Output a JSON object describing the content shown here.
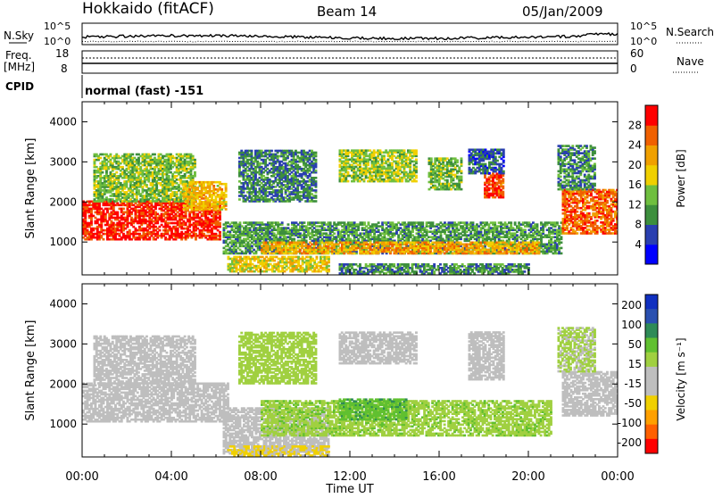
{
  "header": {
    "station": "Hokkaido (fitACF)",
    "beam": "Beam 14",
    "date": "05/Jan/2009"
  },
  "noise_panel": {
    "left_label": "N.Sky",
    "right_label": "N.Search",
    "tick_top": "10^5",
    "tick_bottom": "10^0"
  },
  "freq_panel": {
    "left_label_1": "Freq.",
    "left_label_2": "[MHz]",
    "left_ticks": [
      "18",
      "8"
    ],
    "right_label": "Nave",
    "right_ticks": [
      "60",
      "0"
    ]
  },
  "cpid_panel": {
    "label": "CPID",
    "mode_text": "normal (fast) -151"
  },
  "colors": {
    "power_scale": [
      "#0000ff",
      "#2a3fb0",
      "#3d8f3d",
      "#6fbf3f",
      "#f0d000",
      "#f0a000",
      "#f06000",
      "#ff0000"
    ],
    "velocity_scale": [
      "#ff0000",
      "#ff6000",
      "#ffa000",
      "#f0d000",
      "#bebebe",
      "#bebebe",
      "#a0d040",
      "#60c030",
      "#2e8b57",
      "#2a50b0",
      "#1030c0"
    ]
  },
  "chart_data": [
    {
      "type": "heatmap",
      "title": "Power",
      "xlabel": "",
      "ylabel": "Slant Range [km]",
      "x_ticks": [
        "00:00",
        "04:00",
        "08:00",
        "12:00",
        "16:00",
        "20:00",
        "00:00"
      ],
      "y_ticks": [
        "1000",
        "2000",
        "3000",
        "4000"
      ],
      "ylim": [
        180,
        4500
      ],
      "xlim_hours": [
        0,
        24
      ],
      "colorbar_label": "Power [dB]",
      "colorbar_ticks": [
        "4",
        "8",
        "12",
        "16",
        "20",
        "24",
        "28"
      ],
      "colorbar_range": [
        0,
        32
      ],
      "regions": [
        {
          "t0": 0.0,
          "t1": 6.2,
          "r0": 1050,
          "r1": 2000,
          "value": 29
        },
        {
          "t0": 0.5,
          "t1": 5.0,
          "r0": 2000,
          "r1": 3200,
          "value": 14
        },
        {
          "t0": 4.5,
          "t1": 6.4,
          "r0": 1800,
          "r1": 2500,
          "value": 20
        },
        {
          "t0": 6.3,
          "t1": 21.5,
          "r0": 700,
          "r1": 1500,
          "value": 11
        },
        {
          "t0": 8.0,
          "t1": 20.5,
          "r0": 700,
          "r1": 1000,
          "value": 22
        },
        {
          "t0": 6.5,
          "t1": 11.0,
          "r0": 250,
          "r1": 650,
          "value": 18
        },
        {
          "t0": 11.5,
          "t1": 20.0,
          "r0": 200,
          "r1": 450,
          "value": 10
        },
        {
          "t0": 18.0,
          "t1": 18.9,
          "r0": 2100,
          "r1": 2700,
          "value": 28
        },
        {
          "t0": 17.3,
          "t1": 18.9,
          "r0": 2700,
          "r1": 3300,
          "value": 7
        },
        {
          "t0": 11.5,
          "t1": 15.0,
          "r0": 2500,
          "r1": 3300,
          "value": 15
        },
        {
          "t0": 15.5,
          "t1": 17.0,
          "r0": 2300,
          "r1": 3100,
          "value": 13
        },
        {
          "t0": 7.0,
          "t1": 10.5,
          "r0": 2000,
          "r1": 3300,
          "value": 9
        },
        {
          "t0": 21.5,
          "t1": 24.0,
          "r0": 1200,
          "r1": 2300,
          "value": 26
        },
        {
          "t0": 21.3,
          "t1": 23.0,
          "r0": 2300,
          "r1": 3400,
          "value": 10
        }
      ]
    },
    {
      "type": "heatmap",
      "title": "Velocity",
      "xlabel": "Time UT",
      "ylabel": "Slant Range [km]",
      "x_ticks": [
        "00:00",
        "04:00",
        "08:00",
        "12:00",
        "16:00",
        "20:00",
        "00:00"
      ],
      "y_ticks": [
        "1000",
        "2000",
        "3000",
        "4000"
      ],
      "ylim": [
        180,
        4500
      ],
      "xlim_hours": [
        0,
        24
      ],
      "colorbar_label": "Velocity [m s⁻¹]",
      "colorbar_ticks": [
        "200",
        "100",
        "50",
        "15",
        "-15",
        "-50",
        "-100",
        "-200"
      ],
      "regions": [
        {
          "t0": 0.0,
          "t1": 6.5,
          "r0": 1050,
          "r1": 2000,
          "value": 0
        },
        {
          "t0": 0.5,
          "t1": 5.0,
          "r0": 2000,
          "r1": 3200,
          "value": 0
        },
        {
          "t0": 6.3,
          "t1": 11.0,
          "r0": 250,
          "r1": 1400,
          "value": 0
        },
        {
          "t0": 8.0,
          "t1": 21.0,
          "r0": 700,
          "r1": 1600,
          "value": 40
        },
        {
          "t0": 11.5,
          "t1": 14.5,
          "r0": 1100,
          "r1": 1600,
          "value": 90
        },
        {
          "t0": 11.5,
          "t1": 15.0,
          "r0": 2500,
          "r1": 3300,
          "value": 0
        },
        {
          "t0": 17.3,
          "t1": 18.9,
          "r0": 2100,
          "r1": 3300,
          "value": 0
        },
        {
          "t0": 7.0,
          "t1": 10.5,
          "r0": 2000,
          "r1": 3300,
          "value": 30
        },
        {
          "t0": 21.5,
          "t1": 24.0,
          "r0": 1200,
          "r1": 2300,
          "value": 0
        },
        {
          "t0": 21.3,
          "t1": 23.0,
          "r0": 2300,
          "r1": 3400,
          "value": 20
        },
        {
          "t0": 6.5,
          "t1": 11.0,
          "r0": 200,
          "r1": 450,
          "value": -20
        }
      ]
    }
  ]
}
